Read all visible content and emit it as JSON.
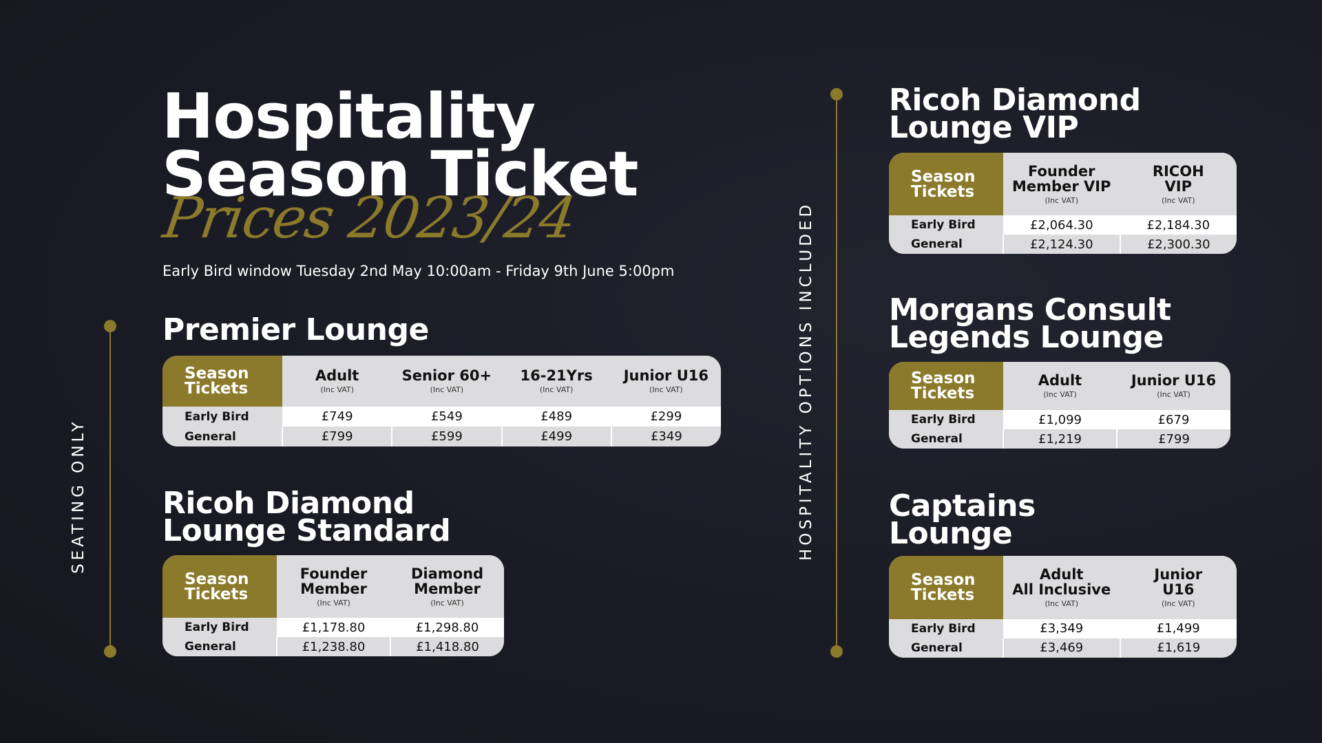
{
  "title_line1": "Hospitality",
  "title_line2": "Season Ticket",
  "title_script": "Prices 2023/24",
  "early_bird_window": "Early Bird window Tuesday 2nd May 10:00am - Friday 9th June 5:00pm",
  "side_label_left": "SEATING ONLY",
  "side_label_right": "HOSPITALITY OPTIONS INCLUDED",
  "accent_color": "#8b7a2b",
  "corner_label": [
    "Season",
    "Tickets"
  ],
  "vat_note": "(Inc VAT)",
  "row_labels": [
    "Early Bird",
    "General"
  ],
  "premier": {
    "title": "Premier Lounge",
    "columns": [
      "Adult",
      "Senior 60+",
      "16-21Yrs",
      "Junior U16"
    ],
    "early_bird": [
      "£749",
      "£549",
      "£489",
      "£299"
    ],
    "general": [
      "£799",
      "£599",
      "£499",
      "£349"
    ]
  },
  "ricoh_standard": {
    "title": [
      "Ricoh Diamond",
      "Lounge Standard"
    ],
    "columns": [
      [
        "Founder",
        "Member"
      ],
      [
        "Diamond",
        "Member"
      ]
    ],
    "early_bird": [
      "£1,178.80",
      "£1,298.80"
    ],
    "general": [
      "£1,238.80",
      "£1,418.80"
    ]
  },
  "ricoh_vip": {
    "title": [
      "Ricoh Diamond",
      "Lounge VIP"
    ],
    "columns": [
      [
        "Founder",
        "Member VIP"
      ],
      [
        "RICOH",
        "VIP"
      ]
    ],
    "early_bird": [
      "£2,064.30",
      "£2,184.30"
    ],
    "general": [
      "£2,124.30",
      "£2,300.30"
    ]
  },
  "morgans": {
    "title": [
      "Morgans Consult",
      "Legends Lounge"
    ],
    "columns": [
      "Adult",
      "Junior U16"
    ],
    "early_bird": [
      "£1,099",
      "£679"
    ],
    "general": [
      "£1,219",
      "£799"
    ]
  },
  "captains": {
    "title": [
      "Captains",
      "Lounge"
    ],
    "columns": [
      [
        "Adult",
        "All Inclusive"
      ],
      [
        "Junior",
        "U16"
      ]
    ],
    "early_bird": [
      "£3,349",
      "£1,499"
    ],
    "general": [
      "£3,469",
      "£1,619"
    ]
  }
}
